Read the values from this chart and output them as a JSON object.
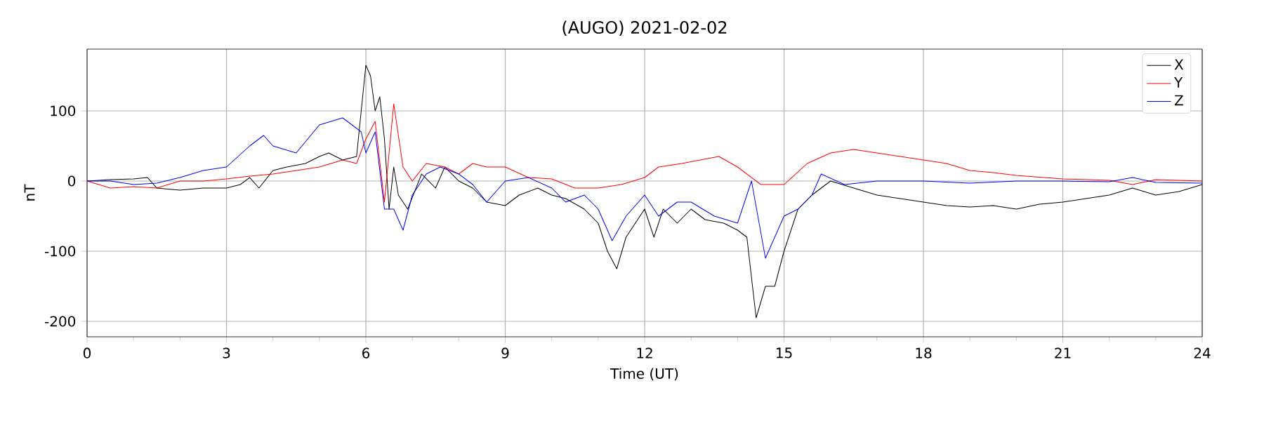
{
  "chart_data": {
    "type": "line",
    "title": "(AUGO) 2021-02-02",
    "xlabel": "Time (UT)",
    "ylabel": "nT",
    "xlim": [
      0,
      24
    ],
    "xticks": [
      0,
      3,
      6,
      9,
      12,
      15,
      18,
      21,
      24
    ],
    "ylim": [
      -222,
      188
    ],
    "yticks": [
      -200,
      -100,
      0,
      100
    ],
    "grid": true,
    "legend": "top right",
    "marker": "none",
    "line_style": "solid",
    "series": [
      {
        "name": "X",
        "color": "#000000",
        "x": [
          0,
          0.5,
          1,
          1.3,
          1.5,
          2,
          2.5,
          3,
          3.3,
          3.5,
          3.7,
          4,
          4.3,
          4.7,
          5,
          5.2,
          5.5,
          5.8,
          6,
          6.1,
          6.2,
          6.3,
          6.4,
          6.5,
          6.6,
          6.7,
          6.9,
          7.2,
          7.5,
          7.7,
          8,
          8.3,
          8.6,
          9,
          9.3,
          9.7,
          10,
          10.3,
          10.7,
          11,
          11.2,
          11.4,
          11.6,
          11.8,
          12,
          12.2,
          12.4,
          12.7,
          13,
          13.3,
          13.7,
          14,
          14.2,
          14.4,
          14.6,
          14.8,
          15,
          15.3,
          15.6,
          16,
          16.5,
          17,
          17.5,
          18,
          18.5,
          19,
          19.5,
          20,
          20.5,
          21,
          21.5,
          22,
          22.5,
          23,
          23.5,
          24
        ],
        "values": [
          0,
          2,
          3,
          5,
          -10,
          -13,
          -10,
          -10,
          -5,
          5,
          -10,
          15,
          20,
          25,
          35,
          40,
          30,
          35,
          165,
          150,
          100,
          120,
          60,
          -40,
          20,
          -20,
          -40,
          10,
          -10,
          20,
          0,
          -10,
          -30,
          -35,
          -20,
          -10,
          -20,
          -25,
          -40,
          -60,
          -100,
          -125,
          -80,
          -60,
          -40,
          -80,
          -40,
          -60,
          -40,
          -55,
          -60,
          -70,
          -80,
          -195,
          -150,
          -150,
          -100,
          -40,
          -20,
          0,
          -10,
          -20,
          -25,
          -30,
          -35,
          -37,
          -35,
          -40,
          -33,
          -30,
          -25,
          -20,
          -10,
          -20,
          -15,
          -5
        ]
      },
      {
        "name": "Y",
        "color": "#ff0000",
        "x": [
          0,
          0.5,
          1,
          1.5,
          2,
          2.5,
          3,
          3.5,
          4,
          4.5,
          5,
          5.5,
          5.8,
          6,
          6.2,
          6.4,
          6.6,
          6.8,
          7,
          7.3,
          7.7,
          8,
          8.3,
          8.6,
          9,
          9.5,
          10,
          10.5,
          11,
          11.5,
          12,
          12.3,
          12.8,
          13.2,
          13.6,
          14,
          14.5,
          15,
          15.5,
          16,
          16.5,
          17,
          17.5,
          18,
          18.5,
          19,
          19.5,
          20,
          21,
          22,
          22.5,
          23,
          24
        ],
        "values": [
          0,
          -10,
          -8,
          -10,
          0,
          0,
          3,
          7,
          10,
          15,
          20,
          30,
          25,
          60,
          85,
          -30,
          110,
          20,
          0,
          25,
          20,
          10,
          25,
          20,
          20,
          5,
          3,
          -10,
          -10,
          -5,
          5,
          20,
          25,
          30,
          35,
          20,
          -5,
          -5,
          25,
          40,
          45,
          40,
          35,
          30,
          25,
          15,
          12,
          8,
          3,
          1,
          -5,
          2,
          0
        ]
      },
      {
        "name": "Z",
        "color": "#0000ff",
        "x": [
          0,
          0.5,
          1,
          1.5,
          2,
          2.5,
          3,
          3.5,
          3.8,
          4,
          4.5,
          5,
          5.5,
          5.9,
          6,
          6.2,
          6.4,
          6.6,
          6.8,
          7,
          7.3,
          7.6,
          8,
          8.3,
          8.6,
          9,
          9.5,
          10,
          10.3,
          10.7,
          11,
          11.3,
          11.6,
          12,
          12.3,
          12.7,
          13,
          13.5,
          14,
          14.3,
          14.6,
          15,
          15.3,
          15.6,
          15.8,
          16.3,
          17,
          18,
          19,
          20,
          21,
          22,
          22.5,
          23,
          24
        ],
        "values": [
          0,
          0,
          -5,
          -3,
          5,
          15,
          20,
          50,
          65,
          50,
          40,
          80,
          90,
          70,
          40,
          70,
          -40,
          -40,
          -70,
          -20,
          10,
          20,
          10,
          -5,
          -30,
          0,
          5,
          -10,
          -30,
          -20,
          -40,
          -85,
          -50,
          -20,
          -50,
          -30,
          -30,
          -50,
          -60,
          0,
          -110,
          -50,
          -40,
          -20,
          10,
          -5,
          0,
          0,
          -3,
          0,
          0,
          -1,
          5,
          -2,
          -3
        ]
      }
    ]
  }
}
